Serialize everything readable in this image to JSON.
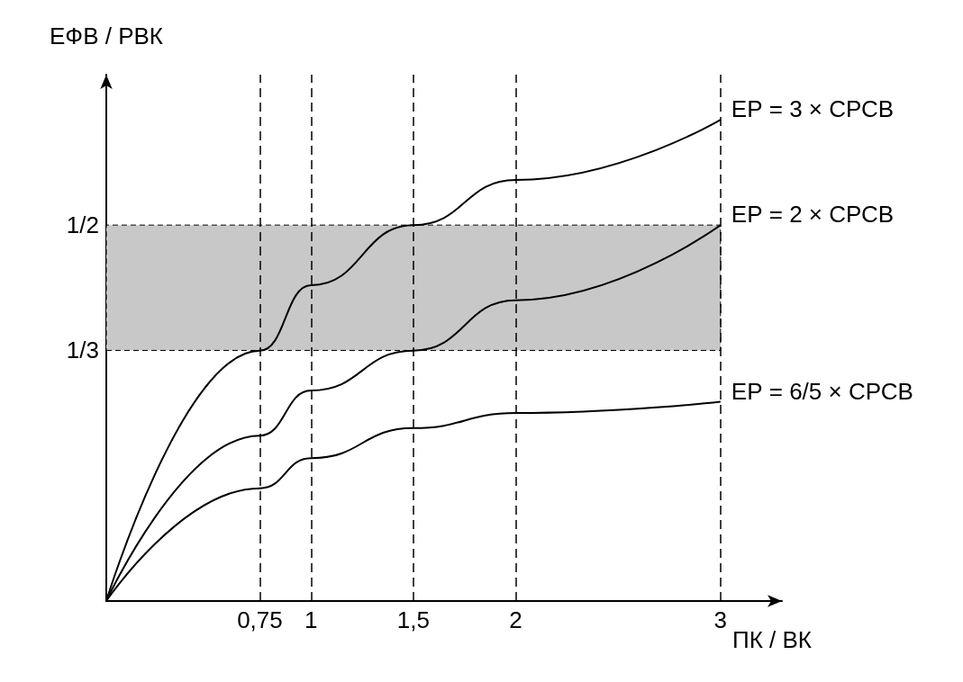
{
  "chart_data": {
    "type": "line",
    "xlabel": "ПК / ВК",
    "ylabel": "ЕФВ / РВК",
    "xlim": [
      0,
      3.3
    ],
    "ylim": [
      0,
      0.7
    ],
    "xticks": [
      {
        "value": 0.75,
        "label": "0,75"
      },
      1,
      {
        "value": 1.5,
        "label": "1,5"
      },
      2,
      3
    ],
    "yticks": [
      {
        "value": 0.3333,
        "label": "1/3"
      },
      {
        "value": 0.5,
        "label": "1/2"
      }
    ],
    "x": [
      0,
      0.75,
      1,
      1.5,
      2,
      3
    ],
    "series": [
      {
        "name": "ЕР = 3 × СРСВ",
        "color": "#000000",
        "values": [
          0,
          0.333,
          0.42,
          0.5,
          0.56,
          0.64
        ]
      },
      {
        "name": "ЕР = 2 × СРСВ",
        "color": "#000000",
        "values": [
          0,
          0.22,
          0.28,
          0.333,
          0.4,
          0.5
        ]
      },
      {
        "name": "ЕР = 6/5 × СРСВ",
        "color": "#000000",
        "values": [
          0,
          0.15,
          0.19,
          0.23,
          0.25,
          0.265
        ]
      }
    ],
    "ref_lines": [
      {
        "axis": "x",
        "value": 0.75,
        "label": null,
        "line_style": "dashed"
      },
      {
        "axis": "x",
        "value": 1,
        "label": null,
        "line_style": "dashed"
      },
      {
        "axis": "x",
        "value": 1.5,
        "label": null,
        "line_style": "dashed"
      },
      {
        "axis": "x",
        "value": 2,
        "label": null,
        "line_style": "dashed"
      },
      {
        "axis": "x",
        "value": 3,
        "label": null,
        "line_style": "dashed"
      }
    ],
    "bands": [
      {
        "axis": "y",
        "from": 0.3333,
        "to": 0.5,
        "label": null,
        "color": "#c8c8c8"
      }
    ],
    "grid": false,
    "legend": false,
    "marker": "none",
    "line_style": "solid"
  }
}
